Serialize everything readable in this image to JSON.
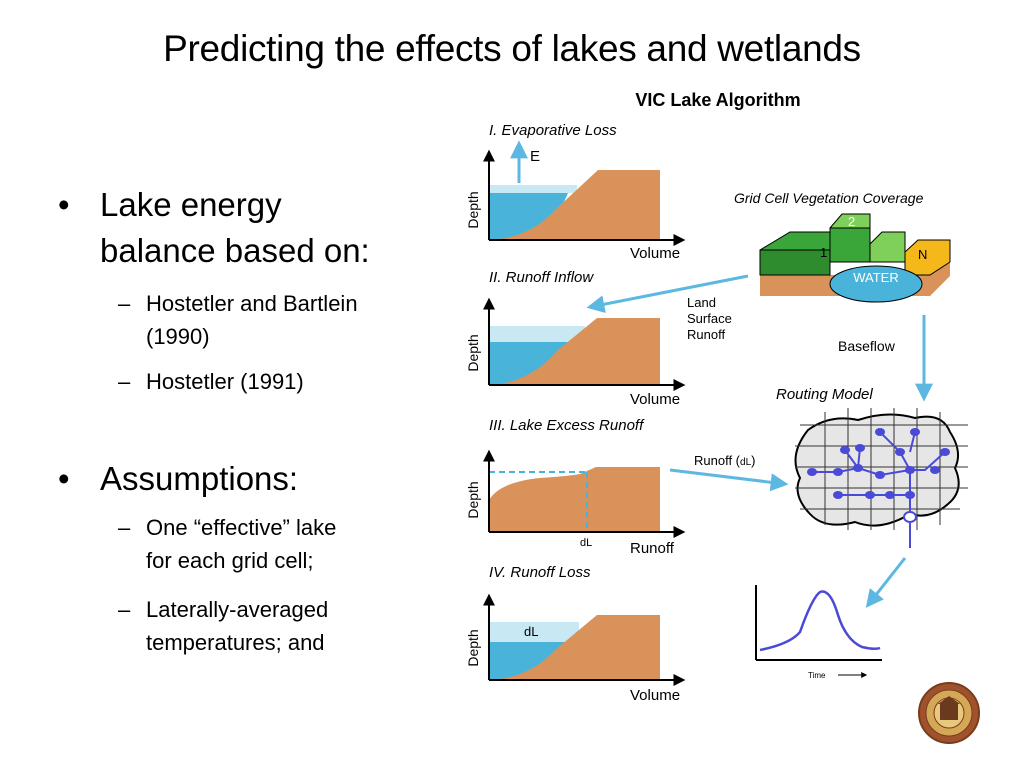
{
  "slide": {
    "title": "Predicting the effects of lakes and wetlands",
    "bullets": [
      {
        "text": "Lake energy balance based on:",
        "lines": [
          "Lake energy",
          "balance based on:"
        ],
        "subitems": [
          {
            "lines": [
              "Hostetler and Bartlein",
              "(1990)"
            ]
          },
          {
            "lines": [
              "Hostetler (1991)"
            ]
          }
        ]
      },
      {
        "text": "Assumptions:",
        "lines": [
          "Assumptions:"
        ],
        "subitems": [
          {
            "lines": [
              "One “effective” lake",
              "for each grid cell;"
            ]
          },
          {
            "lines": [
              "Laterally-averaged",
              "temperatures; and"
            ]
          }
        ]
      }
    ]
  },
  "diagram": {
    "title": "VIC Lake Algorithm",
    "panels": [
      {
        "title": "I. Evaporative Loss",
        "ylabel": "Depth",
        "xlabel": "Volume",
        "flux_label": "E"
      },
      {
        "title": "II. Runoff Inflow",
        "ylabel": "Depth",
        "xlabel": "Volume"
      },
      {
        "title": "III. Lake Excess Runoff",
        "ylabel": "Depth",
        "xlabel": "Runoff",
        "marker": "dL"
      },
      {
        "title": "IV. Runoff Loss",
        "ylabel": "Depth",
        "xlabel": "Volume",
        "marker": "dL"
      }
    ],
    "grid_cell": {
      "title": "Grid Cell Vegetation Coverage",
      "labels": {
        "veg1": "1",
        "veg2": "2",
        "veg_n": "N",
        "water": "WATER"
      }
    },
    "arrows": {
      "land_surface_runoff": [
        "Land",
        "Surface",
        "Runoff"
      ],
      "baseflow": "Baseflow",
      "runoff_prefix": "Runoff (",
      "runoff_unit": "dL",
      "runoff_suffix": ")"
    },
    "routing_model": {
      "title": "Routing Model"
    },
    "hydrograph": {
      "xlabel": "Time"
    },
    "colors": {
      "water": "#4ab3d9",
      "water_light": "#c8e8f4",
      "land": "#d9925a",
      "arrow": "#5cb8e0",
      "veg_green": "#3aa63a",
      "veg_light_green": "#7fd05a",
      "veg_yellow": "#f5b81a",
      "routing_node": "#4a4ad8",
      "hydrograph_line": "#4a4ad8"
    }
  }
}
